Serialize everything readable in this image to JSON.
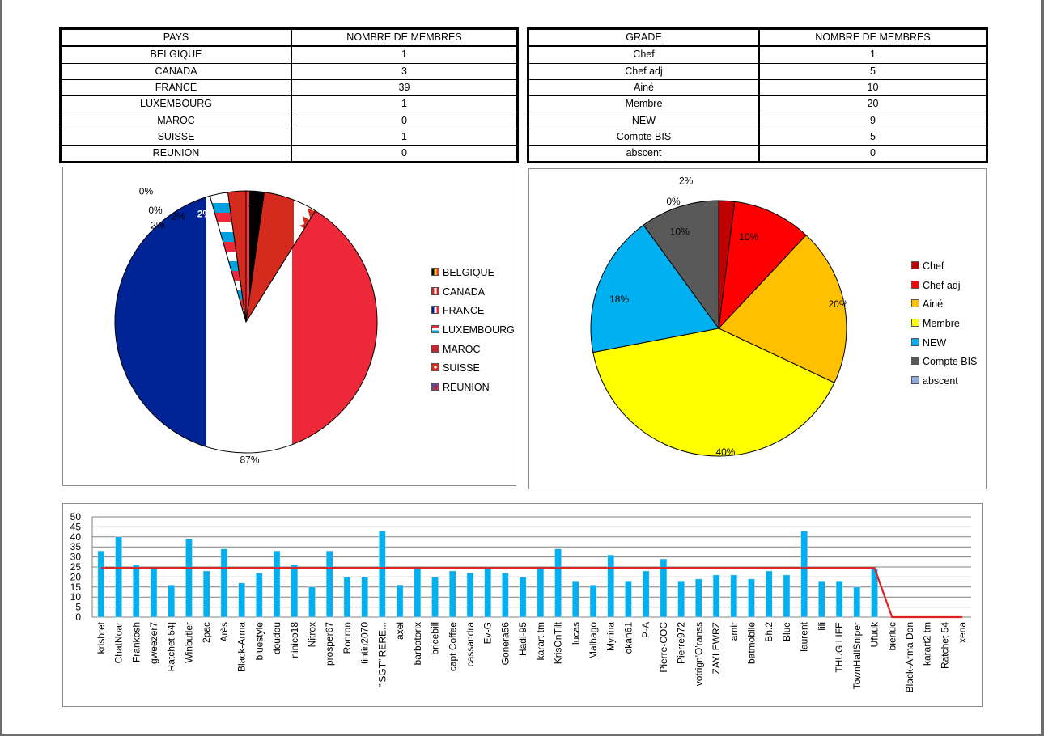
{
  "pays_table": {
    "headers": [
      "PAYS",
      "NOMBRE DE MEMBRES"
    ],
    "rows": [
      [
        "BELGIQUE",
        "1"
      ],
      [
        "CANADA",
        "3"
      ],
      [
        "FRANCE",
        "39"
      ],
      [
        "LUXEMBOURG",
        "1"
      ],
      [
        "MAROC",
        "0"
      ],
      [
        "SUISSE",
        "1"
      ],
      [
        "REUNION",
        "0"
      ]
    ]
  },
  "grade_table": {
    "headers": [
      "GRADE",
      "NOMBRE DE MEMBRES"
    ],
    "rows": [
      [
        "Chef",
        "1"
      ],
      [
        "Chef adj",
        "5"
      ],
      [
        "Ainé",
        "10"
      ],
      [
        "Membre",
        "20"
      ],
      [
        "NEW",
        "9"
      ],
      [
        "Compte BIS",
        "5"
      ],
      [
        "abscent",
        "0"
      ]
    ]
  },
  "chart_data": [
    {
      "type": "pie",
      "title": "",
      "legend_position": "right",
      "labels": [
        "BELGIQUE",
        "CANADA",
        "FRANCE",
        "LUXEMBOURG",
        "MAROC",
        "SUISSE",
        "REUNION"
      ],
      "values": [
        1,
        3,
        39,
        1,
        0,
        1,
        0
      ],
      "data_labels": [
        "2%",
        "7%",
        "87%",
        "2%",
        "0%",
        "2%",
        "0%"
      ],
      "fills": [
        "flag-belgium",
        "flag-canada",
        "flag-france",
        "flag-luxembourg",
        "flag-morocco",
        "flag-switzerland",
        "flag-reunion"
      ]
    },
    {
      "type": "pie",
      "title": "",
      "legend_position": "right",
      "labels": [
        "Chef",
        "Chef adj",
        "Ainé",
        "Membre",
        "NEW",
        "Compte BIS",
        "abscent"
      ],
      "values": [
        1,
        5,
        10,
        20,
        9,
        5,
        0
      ],
      "data_labels": [
        "2%",
        "10%",
        "20%",
        "40%",
        "18%",
        "10%",
        "0%"
      ],
      "colors": [
        "#c00000",
        "#ff0000",
        "#ffc000",
        "#ffff00",
        "#00b0f0",
        "#595959",
        "#8ea9db"
      ]
    },
    {
      "type": "bar",
      "title": "",
      "categories": [
        "krisbret",
        "ChatNoar",
        "Frankosh",
        "gweezer7",
        "Ratchet 54]",
        "Winbutler",
        "2pac",
        "Arès",
        "Black-Arma",
        "bluestyle",
        "doudou",
        "ninico18",
        "Nitrox",
        "prosper67",
        "Ronron",
        "tintin2070",
        "'\"SGT\"'RERE...",
        "axel",
        "barbatorix",
        "bricebill",
        "capt Coffee",
        "cassandra",
        "Ev-G",
        "Gonera56",
        "Hadi-95",
        "karart tm",
        "KrisOnTilt",
        "lucas",
        "Malhago",
        "Myrina",
        "okan61",
        "P-A",
        "Pierre-COC",
        "Pierre972",
        "votrign'O'ranss",
        "ZAYLEWRZ",
        "amir",
        "batmobile",
        "Bh.2",
        "Blue",
        "laurent",
        "lili",
        "THUG LIFE",
        "TownHallSniper",
        "Ufuuk",
        "bierluc",
        "Black-Arma Don",
        "karart2 tm",
        "Ratchet 54",
        "xena"
      ],
      "series": [
        {
          "type": "bar",
          "color": "#00b0f0",
          "values": [
            33,
            40,
            26,
            24,
            16,
            39,
            23,
            34,
            17,
            22,
            33,
            26,
            15,
            33,
            20,
            20,
            43,
            16,
            24,
            20,
            23,
            22,
            24,
            22,
            20,
            24,
            34,
            18,
            16,
            31,
            18,
            23,
            29,
            18,
            19,
            21,
            21,
            19,
            23,
            21,
            43,
            18,
            18,
            15,
            24,
            0,
            0,
            0,
            0,
            0
          ]
        },
        {
          "type": "line",
          "color": "#e02020",
          "values": [
            24.5,
            24.5,
            24.5,
            24.5,
            24.5,
            24.5,
            24.5,
            24.5,
            24.5,
            24.5,
            24.5,
            24.5,
            24.5,
            24.5,
            24.5,
            24.5,
            24.5,
            24.5,
            24.5,
            24.5,
            24.5,
            24.5,
            24.5,
            24.5,
            24.5,
            24.5,
            24.5,
            24.5,
            24.5,
            24.5,
            24.5,
            24.5,
            24.5,
            24.5,
            24.5,
            24.5,
            24.5,
            24.5,
            24.5,
            24.5,
            24.5,
            24.5,
            24.5,
            24.5,
            24.5,
            0,
            0,
            0,
            0,
            0
          ]
        }
      ],
      "ylim": [
        0,
        50
      ],
      "yticks": [
        0,
        5,
        10,
        15,
        20,
        25,
        30,
        35,
        40,
        45,
        50
      ],
      "grid": true,
      "legend": "none"
    }
  ]
}
